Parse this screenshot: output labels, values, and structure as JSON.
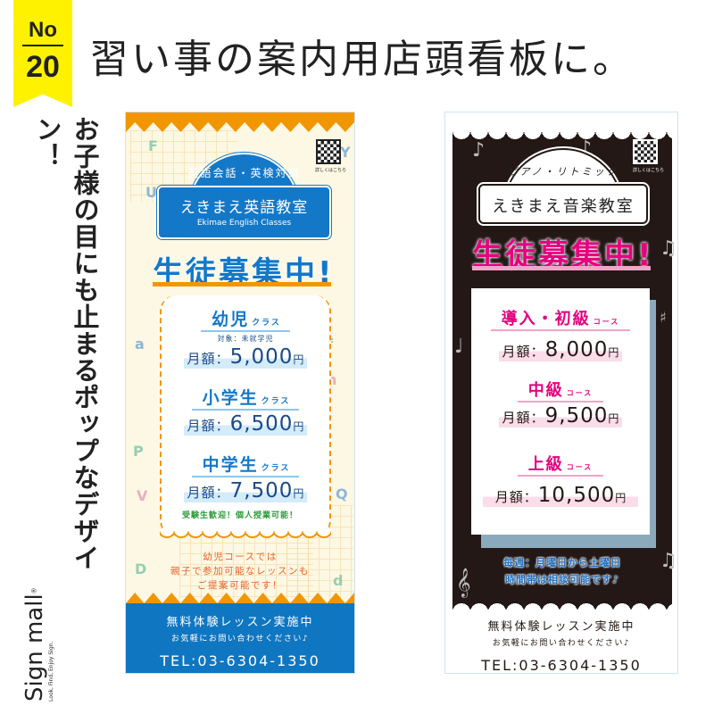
{
  "badge": {
    "label": "No",
    "number": "20",
    "color": "#fff200"
  },
  "title": "習い事の案内用店頭看板に。",
  "tagline": "お子様の目にも止まるポップなデザイン！",
  "logo": {
    "name": "Sign mall",
    "tagline": "Look, Find, Enjoy Sign.",
    "mark": "®"
  },
  "english_banner": {
    "colors": {
      "primary": "#1478c8",
      "accent": "#f29600",
      "background": "#fdf8e4"
    },
    "qr_caption": "詳しくはこちら",
    "plate_arc": "英語会話・英検対策",
    "school_name": "えきまえ英語教室",
    "school_name_en": "Ekimae English Classes",
    "catch": "生徒募集中!",
    "courses": [
      {
        "name": "幼児",
        "suffix": "クラス",
        "target": "対象：未就学児",
        "label": "月額：",
        "amount": "5,000",
        "unit": "円"
      },
      {
        "name": "小学生",
        "suffix": "クラス",
        "label": "月額：",
        "amount": "6,500",
        "unit": "円"
      },
      {
        "name": "中学生",
        "suffix": "クラス",
        "label": "月額：",
        "amount": "7,500",
        "unit": "円"
      }
    ],
    "note": "受験生歓迎！個人授業可能！",
    "kids_note": [
      "幼児コースでは",
      "親子で参加可能なレッスンも",
      "ご提案可能です！"
    ],
    "footer": {
      "trial": "無料体験レッスン実施中",
      "contact": "お気軽にお問い合わせください♪",
      "tel": "TEL:03-6304-1350"
    }
  },
  "music_banner": {
    "colors": {
      "primary": "#e4007f",
      "background": "#231815",
      "shadow": "#8ba9bd",
      "info": "#1e6fc0"
    },
    "qr_caption": "詳しくはこちら",
    "plate_arc": "ピアノ・リトミック",
    "school_name": "えきまえ音楽教室",
    "catch": "生徒募集中!",
    "courses": [
      {
        "name": "導入・初級",
        "suffix": "コース",
        "label": "月額：",
        "amount": "8,000",
        "unit": "円"
      },
      {
        "name": "中級",
        "suffix": "コース",
        "label": "月額：",
        "amount": "9,500",
        "unit": "円"
      },
      {
        "name": "上級",
        "suffix": "コース",
        "label": "月額：",
        "amount": "10,500",
        "unit": "円"
      }
    ],
    "info": [
      "毎週：月曜日から土曜日",
      "時間帯は相談可能です♪"
    ],
    "footer": {
      "trial": "無料体験レッスン実施中",
      "contact": "お気軽にお問い合わせください♪",
      "tel": "TEL:03-6304-1350"
    }
  }
}
